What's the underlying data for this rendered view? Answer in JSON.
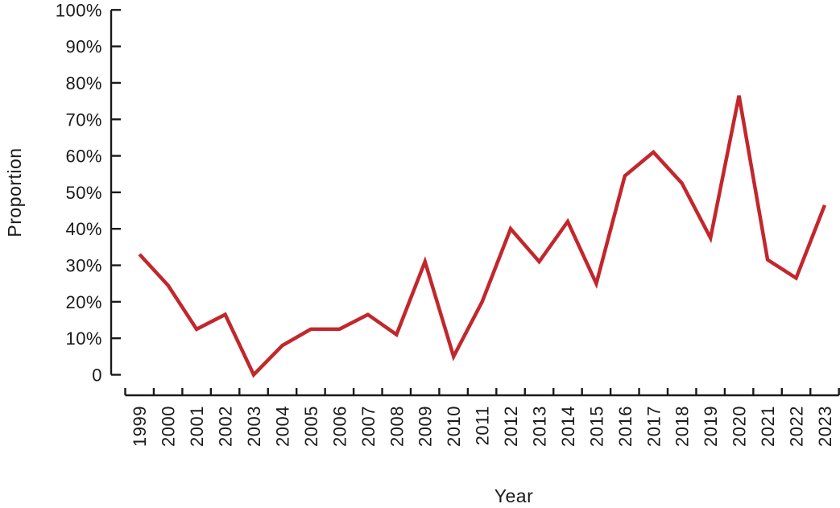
{
  "chart_data": {
    "type": "line",
    "title": "",
    "xlabel": "Year",
    "ylabel": "Proportion",
    "categories": [
      "1999",
      "2000",
      "2001",
      "2002",
      "2003",
      "2004",
      "2005",
      "2006",
      "2007",
      "2008",
      "2009",
      "2010",
      "2011",
      "2012",
      "2013",
      "2014",
      "2015",
      "2016",
      "2017",
      "2018",
      "2019",
      "2020",
      "2021",
      "2022",
      "2023"
    ],
    "values": [
      33,
      24.5,
      12.5,
      16.5,
      0,
      8,
      12.5,
      12.5,
      16.5,
      11,
      31,
      5,
      20,
      40,
      31,
      42,
      25,
      54.5,
      61,
      52.5,
      37.5,
      76.5,
      31.5,
      26.5,
      46.5
    ],
    "value_unit": "%",
    "ylim": [
      0,
      100
    ],
    "ytick_values": [
      0,
      10,
      20,
      30,
      40,
      50,
      60,
      70,
      80,
      90,
      100
    ],
    "ytick_labels": [
      "0",
      "10%",
      "20%",
      "30%",
      "40%",
      "50%",
      "60%",
      "70%",
      "80%",
      "90%",
      "100%"
    ],
    "grid": "off",
    "legend": "none",
    "line_color": "#c2272d",
    "axis_color": "#1a1a1a",
    "background_color": "#ffffff"
  }
}
